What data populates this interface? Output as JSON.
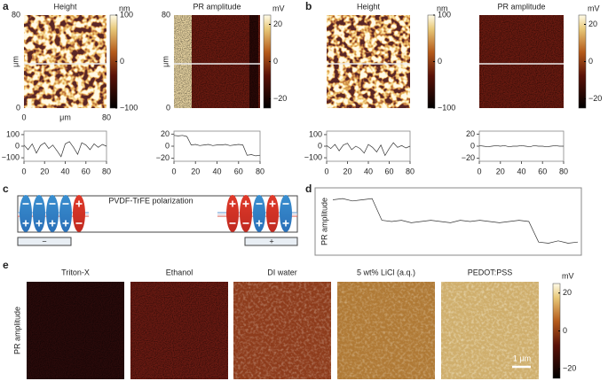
{
  "panel_a": {
    "label": "a",
    "maps": [
      {
        "title": "Height",
        "unit": "nm",
        "clim": [
          -100,
          100
        ],
        "cticks": [
          100,
          0,
          {
            "value": -100,
            "label": "−100"
          }
        ],
        "xlabel": "μm",
        "ylabel": "μm",
        "xlim": [
          0,
          80
        ],
        "xticks": [
          0,
          80
        ],
        "ylim": [
          0,
          80
        ],
        "yticks": [
          0,
          80
        ]
      },
      {
        "title": "PR amplitude",
        "unit": "mV",
        "clim": [
          -25,
          25
        ],
        "cticks": [
          20,
          0,
          {
            "value": -20,
            "label": "−20"
          }
        ],
        "ylabel": "μm",
        "ylim": [
          0,
          80
        ],
        "yticks": [
          0,
          80
        ]
      }
    ],
    "profiles": [
      {
        "x": [
          0,
          4,
          8,
          12,
          16,
          20,
          24,
          28,
          32,
          36,
          40,
          44,
          48,
          52,
          56,
          60,
          64,
          68,
          72,
          76,
          80
        ],
        "values": [
          10,
          -30,
          20,
          -60,
          5,
          30,
          -20,
          10,
          -40,
          -90,
          20,
          40,
          -10,
          -70,
          30,
          10,
          -30,
          20,
          -10,
          15,
          0
        ],
        "xlim": [
          0,
          80
        ],
        "xticks": [
          0,
          20,
          40,
          60,
          80
        ],
        "ylim": [
          -130,
          130
        ],
        "yticks": [
          100,
          0,
          {
            "value": -100,
            "label": "−100"
          }
        ]
      },
      {
        "x": [
          0,
          4,
          8,
          12,
          16,
          20,
          24,
          28,
          32,
          36,
          40,
          44,
          48,
          52,
          56,
          60,
          64,
          68,
          72,
          76,
          80
        ],
        "values": [
          18,
          17,
          18,
          16,
          2,
          3,
          1,
          2,
          3,
          1,
          2,
          2,
          3,
          1,
          2,
          3,
          2,
          -15,
          -14,
          -16,
          -15
        ],
        "xlim": [
          0,
          80
        ],
        "xticks": [
          0,
          20,
          40,
          60,
          80
        ],
        "ylim": [
          -25,
          25
        ],
        "yticks": [
          20,
          0,
          {
            "value": -20,
            "label": "−20"
          }
        ]
      }
    ]
  },
  "panel_b": {
    "label": "b",
    "maps": [
      {
        "title": "Height",
        "unit": "nm",
        "clim": [
          -100,
          100
        ],
        "cticks": [
          100,
          0,
          {
            "value": -100,
            "label": "−100"
          }
        ]
      },
      {
        "title": "PR amplitude",
        "unit": "mV",
        "clim": [
          -25,
          25
        ],
        "cticks": [
          20,
          0,
          {
            "value": -20,
            "label": "−20"
          }
        ]
      }
    ],
    "profiles": [
      {
        "x": [
          0,
          4,
          8,
          12,
          16,
          20,
          24,
          28,
          32,
          36,
          40,
          44,
          48,
          52,
          56,
          60,
          64,
          68,
          72,
          76,
          80
        ],
        "values": [
          5,
          -20,
          15,
          -40,
          10,
          25,
          -30,
          0,
          -20,
          -60,
          15,
          -10,
          -50,
          10,
          -80,
          -20,
          30,
          -10,
          5,
          -15,
          0
        ],
        "xlim": [
          0,
          80
        ],
        "xticks": [
          0,
          20,
          40,
          60,
          80
        ],
        "ylim": [
          -130,
          130
        ],
        "yticks": [
          100,
          0,
          {
            "value": -100,
            "label": "−100"
          }
        ]
      },
      {
        "x": [
          0,
          4,
          8,
          12,
          16,
          20,
          24,
          28,
          32,
          36,
          40,
          44,
          48,
          52,
          56,
          60,
          64,
          68,
          72,
          76,
          80
        ],
        "values": [
          1,
          0,
          -1,
          0,
          1,
          0,
          1,
          -1,
          0,
          0,
          1,
          0,
          -1,
          1,
          0,
          0,
          -1,
          0,
          1,
          0,
          0
        ],
        "xlim": [
          0,
          80
        ],
        "xticks": [
          0,
          20,
          40,
          60,
          80
        ],
        "ylim": [
          -25,
          25
        ],
        "yticks": [
          20,
          0,
          {
            "value": -20,
            "label": "−20"
          }
        ]
      }
    ]
  },
  "panel_c": {
    "label": "c",
    "title": "PVDF-TrFE polarization",
    "electrodes": [
      "−",
      "+"
    ]
  },
  "panel_d": {
    "label": "d",
    "ylabel": "PR amplitude",
    "x": [
      0,
      4,
      8,
      12,
      16,
      20,
      24,
      28,
      32,
      36,
      40,
      44,
      48,
      52,
      56,
      60,
      64,
      68,
      72,
      76,
      80,
      84,
      88,
      92,
      96,
      100
    ],
    "values": [
      20,
      21,
      19,
      20,
      21,
      3,
      2,
      3,
      1,
      2,
      3,
      2,
      1,
      3,
      2,
      3,
      2,
      1,
      2,
      3,
      2,
      -15,
      -16,
      -14,
      -16,
      -15
    ],
    "xlim": [
      0,
      100
    ],
    "ylim": [
      -20,
      24
    ]
  },
  "panel_e": {
    "label": "e",
    "ylabel": "PR amplitude",
    "maps": [
      "Triton-X",
      "Ethanol",
      "DI water",
      "5 wt% LiCl (a.q.)",
      "PEDOT:PSS"
    ],
    "colorbar": {
      "unit": "mV",
      "clim": [
        -25,
        25
      ],
      "cticks": [
        20,
        0,
        {
          "value": -20,
          "label": "−20"
        }
      ]
    },
    "scale_bar": "1 μm"
  }
}
